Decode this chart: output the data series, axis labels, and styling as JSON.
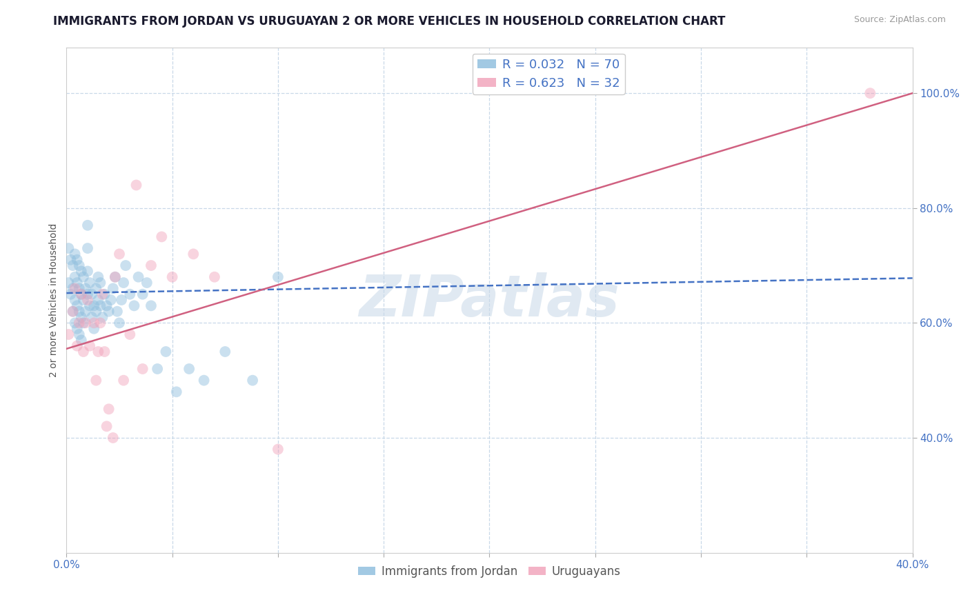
{
  "title": "IMMIGRANTS FROM JORDAN VS URUGUAYAN 2 OR MORE VEHICLES IN HOUSEHOLD CORRELATION CHART",
  "source_text": "Source: ZipAtlas.com",
  "xlabel": "",
  "ylabel": "2 or more Vehicles in Household",
  "xlim": [
    0.0,
    0.4
  ],
  "ylim": [
    0.2,
    1.08
  ],
  "xticks": [
    0.0,
    0.05,
    0.1,
    0.15,
    0.2,
    0.25,
    0.3,
    0.35,
    0.4
  ],
  "xticklabels": [
    "0.0%",
    "",
    "",
    "",
    "",
    "",
    "",
    "",
    "40.0%"
  ],
  "yticks": [
    0.4,
    0.6,
    0.8,
    1.0
  ],
  "yticklabels": [
    "40.0%",
    "60.0%",
    "80.0%",
    "100.0%"
  ],
  "legend_items": [
    {
      "label": "R = 0.032   N = 70",
      "color": "#a8c8e8"
    },
    {
      "label": "R = 0.623   N = 32",
      "color": "#f8b8c8"
    }
  ],
  "legend_labels": [
    "Immigrants from Jordan",
    "Uruguayans"
  ],
  "watermark": "ZIPatlas",
  "blue_scatter_x": [
    0.001,
    0.001,
    0.002,
    0.002,
    0.003,
    0.003,
    0.003,
    0.004,
    0.004,
    0.004,
    0.004,
    0.005,
    0.005,
    0.005,
    0.005,
    0.006,
    0.006,
    0.006,
    0.006,
    0.007,
    0.007,
    0.007,
    0.007,
    0.008,
    0.008,
    0.008,
    0.009,
    0.009,
    0.01,
    0.01,
    0.01,
    0.01,
    0.011,
    0.011,
    0.012,
    0.012,
    0.013,
    0.013,
    0.014,
    0.014,
    0.015,
    0.015,
    0.016,
    0.016,
    0.017,
    0.018,
    0.019,
    0.02,
    0.021,
    0.022,
    0.023,
    0.024,
    0.025,
    0.026,
    0.027,
    0.028,
    0.03,
    0.032,
    0.034,
    0.036,
    0.038,
    0.04,
    0.043,
    0.047,
    0.052,
    0.058,
    0.065,
    0.075,
    0.088,
    0.1
  ],
  "blue_scatter_y": [
    0.67,
    0.73,
    0.65,
    0.71,
    0.62,
    0.66,
    0.7,
    0.6,
    0.64,
    0.68,
    0.72,
    0.59,
    0.63,
    0.67,
    0.71,
    0.58,
    0.62,
    0.66,
    0.7,
    0.57,
    0.61,
    0.65,
    0.69,
    0.6,
    0.64,
    0.68,
    0.62,
    0.66,
    0.65,
    0.69,
    0.73,
    0.77,
    0.63,
    0.67,
    0.61,
    0.65,
    0.59,
    0.63,
    0.62,
    0.66,
    0.64,
    0.68,
    0.63,
    0.67,
    0.61,
    0.65,
    0.63,
    0.62,
    0.64,
    0.66,
    0.68,
    0.62,
    0.6,
    0.64,
    0.67,
    0.7,
    0.65,
    0.63,
    0.68,
    0.65,
    0.67,
    0.63,
    0.52,
    0.55,
    0.48,
    0.52,
    0.5,
    0.55,
    0.5,
    0.68
  ],
  "pink_scatter_x": [
    0.001,
    0.003,
    0.004,
    0.005,
    0.006,
    0.007,
    0.008,
    0.009,
    0.01,
    0.011,
    0.013,
    0.014,
    0.015,
    0.016,
    0.017,
    0.018,
    0.019,
    0.02,
    0.022,
    0.023,
    0.025,
    0.027,
    0.03,
    0.033,
    0.036,
    0.04,
    0.045,
    0.05,
    0.06,
    0.07,
    0.1,
    0.38
  ],
  "pink_scatter_y": [
    0.58,
    0.62,
    0.66,
    0.56,
    0.6,
    0.65,
    0.55,
    0.6,
    0.64,
    0.56,
    0.6,
    0.5,
    0.55,
    0.6,
    0.65,
    0.55,
    0.42,
    0.45,
    0.4,
    0.68,
    0.72,
    0.5,
    0.58,
    0.84,
    0.52,
    0.7,
    0.75,
    0.68,
    0.72,
    0.68,
    0.38,
    1.0
  ],
  "blue_line_x": [
    0.0,
    0.4
  ],
  "blue_line_y": [
    0.652,
    0.678
  ],
  "pink_line_x": [
    0.0,
    0.4
  ],
  "pink_line_y": [
    0.555,
    1.0
  ],
  "scatter_size": 130,
  "scatter_alpha": 0.45,
  "blue_color": "#8bbcdc",
  "pink_color": "#f0a0b8",
  "blue_line_color": "#4472c4",
  "pink_line_color": "#d06080",
  "grid_color": "#c8d8e8",
  "grid_style": "--",
  "background_color": "#ffffff",
  "title_fontsize": 12,
  "axis_label_fontsize": 10,
  "tick_fontsize": 11,
  "tick_color": "#4472c4",
  "watermark_color": "#c8d8e8",
  "watermark_fontsize": 60,
  "watermark_alpha": 0.55
}
